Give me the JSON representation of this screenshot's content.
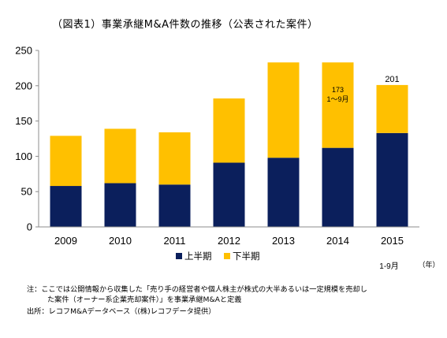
{
  "title": "（図表1）事業承継M&A件数の推移（公表された案件）",
  "chart_data": {
    "type": "bar",
    "stacked": true,
    "categories": [
      "2009",
      "2010",
      "2011",
      "2012",
      "2013",
      "2014",
      "2015"
    ],
    "series": [
      {
        "name": "上半期",
        "color": "#0b1f5c",
        "values": [
          58,
          62,
          60,
          91,
          98,
          112,
          133
        ]
      },
      {
        "name": "下半期",
        "color": "#ffc000",
        "values": [
          71,
          77,
          74,
          91,
          135,
          121,
          68
        ]
      }
    ],
    "ylim": [
      0,
      250
    ],
    "yticks": [
      0,
      50,
      100,
      150,
      200,
      250
    ],
    "grid": false,
    "legend_position": "bottom",
    "annotations": [
      {
        "category": "2015",
        "text": "201",
        "placement": "above-bar"
      },
      {
        "category": "2014",
        "lines": [
          "173",
          "1〜9月"
        ],
        "placement": "inside-bar"
      },
      {
        "category": "2015",
        "text": "1-9月",
        "placement": "below-tick"
      },
      {
        "text": "（年）",
        "placement": "x-axis-end"
      }
    ]
  },
  "notes": {
    "line1": "注：ここでは公開情報から収集した「売り手の経営者や個人株主が株式の大半あるいは一定規模を売却し",
    "line2": "た案件（オーナー系企業売却案件）」を事業承継M&Aと定義",
    "source": "出所：レコフM&Aデータベース（(株)レコフデータ提供）"
  }
}
